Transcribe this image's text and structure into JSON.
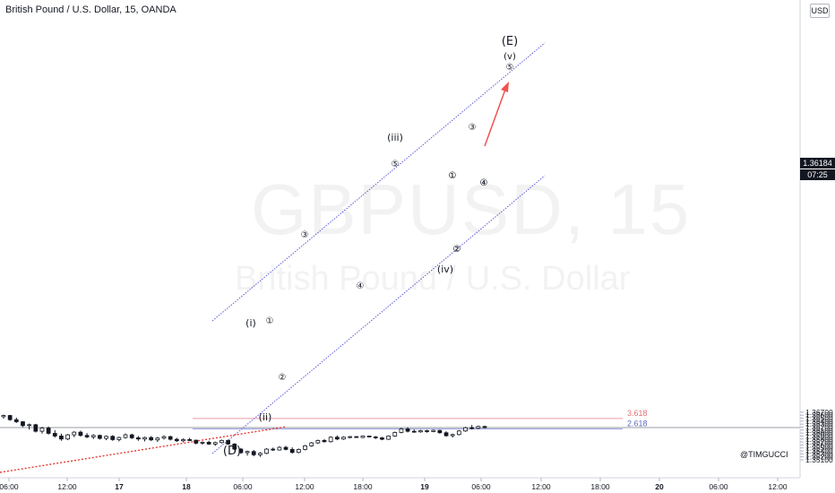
{
  "header": {
    "symbol_title": "British Pound / U.S. Dollar, 15, OANDA",
    "currency": "USD"
  },
  "watermark": {
    "symbol": "GBPUSD, 15",
    "description": "British Pound / U.S. Dollar"
  },
  "credit": "@TIMGUCCI",
  "last_price": {
    "price": "1.36184",
    "countdown": "07:25"
  },
  "colors": {
    "up": "#ffffff",
    "down": "#131722",
    "channel": "#5b5bdb",
    "fib_3618": "#f29aa2",
    "fib_2618": "#9aa0dd",
    "trendline": "#e53935",
    "arrow": "#ef5350"
  },
  "chart_data": {
    "type": "candlestick",
    "title": "British Pound / U.S. Dollar, 15, OANDA",
    "ylim": [
      1.3505,
      1.3675
    ],
    "y_ticks": [
      "1.36700",
      "1.36600",
      "1.36500",
      "1.36400",
      "1.36300",
      "1.36200",
      "1.36100",
      "1.36000",
      "1.35900",
      "1.35800",
      "1.35700",
      "1.35600",
      "1.35500",
      "1.35400",
      "1.35300",
      "1.35200",
      "1.35100"
    ],
    "x_ticks": [
      "06:00",
      "12:00",
      "17",
      "12:00",
      "18",
      "06:00",
      "12:00",
      "18:00",
      "19",
      "06:00",
      "12:00",
      "18:00",
      "20",
      "06:00",
      "12:00"
    ],
    "fib_levels": [
      {
        "label": "3.618",
        "value": 1.3649
      },
      {
        "label": "2.618",
        "value": 1.3614
      }
    ],
    "last_price": 1.36184,
    "wave_labels": [
      "(E)",
      "(v)",
      "⑤",
      "(iii)",
      "⑤",
      "③",
      "④",
      "①",
      "②",
      "(i)",
      "①",
      "②",
      "(ii)",
      "(D)",
      "③",
      "④",
      "(iv)",
      "①",
      "②",
      "④"
    ],
    "candles": [
      [
        1.3655,
        1.3662,
        1.3648,
        1.3659
      ],
      [
        1.3659,
        1.3661,
        1.3641,
        1.3645
      ],
      [
        1.3645,
        1.3652,
        1.3634,
        1.3638
      ],
      [
        1.3638,
        1.364,
        1.362,
        1.3625
      ],
      [
        1.3625,
        1.3632,
        1.3612,
        1.3628
      ],
      [
        1.3628,
        1.3631,
        1.3602,
        1.3606
      ],
      [
        1.3606,
        1.3621,
        1.3598,
        1.3617
      ],
      [
        1.3617,
        1.3622,
        1.3595,
        1.3599
      ],
      [
        1.3599,
        1.361,
        1.3585,
        1.359
      ],
      [
        1.359,
        1.3598,
        1.3574,
        1.358
      ],
      [
        1.358,
        1.3597,
        1.3576,
        1.3594
      ],
      [
        1.3594,
        1.3606,
        1.3586,
        1.3603
      ],
      [
        1.3603,
        1.3608,
        1.3588,
        1.3592
      ],
      [
        1.3592,
        1.36,
        1.3583,
        1.3587
      ],
      [
        1.3587,
        1.3596,
        1.358,
        1.3592
      ],
      [
        1.3592,
        1.3595,
        1.3578,
        1.3582
      ],
      [
        1.3582,
        1.3592,
        1.3576,
        1.3589
      ],
      [
        1.3589,
        1.3593,
        1.3574,
        1.3578
      ],
      [
        1.3578,
        1.3588,
        1.3572,
        1.3585
      ],
      [
        1.3585,
        1.3599,
        1.3581,
        1.3594
      ],
      [
        1.3594,
        1.3598,
        1.358,
        1.3584
      ],
      [
        1.3584,
        1.359,
        1.3574,
        1.358
      ],
      [
        1.358,
        1.3588,
        1.3572,
        1.3585
      ],
      [
        1.3585,
        1.359,
        1.3573,
        1.3577
      ],
      [
        1.3577,
        1.3587,
        1.357,
        1.3583
      ],
      [
        1.3583,
        1.3592,
        1.3578,
        1.3588
      ],
      [
        1.3588,
        1.3591,
        1.3575,
        1.3579
      ],
      [
        1.3579,
        1.3584,
        1.357,
        1.3574
      ],
      [
        1.3574,
        1.3582,
        1.3569,
        1.3578
      ],
      [
        1.3578,
        1.3584,
        1.3573,
        1.3576
      ],
      [
        1.3576,
        1.3578,
        1.3562,
        1.3566
      ],
      [
        1.3566,
        1.3572,
        1.3561,
        1.3569
      ],
      [
        1.3569,
        1.3574,
        1.356,
        1.3563
      ],
      [
        1.3563,
        1.3571,
        1.3557,
        1.3568
      ],
      [
        1.3568,
        1.3578,
        1.3565,
        1.3575
      ],
      [
        1.3575,
        1.3578,
        1.356,
        1.3563
      ],
      [
        1.3563,
        1.3566,
        1.3542,
        1.3546
      ],
      [
        1.3546,
        1.355,
        1.353,
        1.3534
      ],
      [
        1.3534,
        1.3541,
        1.3524,
        1.3538
      ],
      [
        1.3538,
        1.3543,
        1.3522,
        1.3527
      ],
      [
        1.3527,
        1.3536,
        1.352,
        1.3532
      ],
      [
        1.3532,
        1.3549,
        1.3529,
        1.3546
      ],
      [
        1.3546,
        1.3551,
        1.354,
        1.3543
      ],
      [
        1.3543,
        1.3556,
        1.3541,
        1.3552
      ],
      [
        1.3552,
        1.3557,
        1.3542,
        1.3545
      ],
      [
        1.3545,
        1.3552,
        1.3531,
        1.3535
      ],
      [
        1.3535,
        1.3548,
        1.3532,
        1.3545
      ],
      [
        1.3545,
        1.356,
        1.3542,
        1.3557
      ],
      [
        1.3557,
        1.357,
        1.3554,
        1.3567
      ],
      [
        1.3567,
        1.3578,
        1.3563,
        1.3575
      ],
      [
        1.3575,
        1.358,
        1.3568,
        1.3571
      ],
      [
        1.3571,
        1.3589,
        1.3568,
        1.3586
      ],
      [
        1.3586,
        1.3592,
        1.3576,
        1.358
      ],
      [
        1.358,
        1.3589,
        1.3577,
        1.3586
      ],
      [
        1.3586,
        1.359,
        1.3582,
        1.3588
      ],
      [
        1.3588,
        1.359,
        1.3584,
        1.3585
      ],
      [
        1.3585,
        1.3592,
        1.3583,
        1.359
      ],
      [
        1.359,
        1.3591,
        1.3585,
        1.3587
      ],
      [
        1.3587,
        1.359,
        1.358,
        1.3584
      ],
      [
        1.3584,
        1.3587,
        1.3576,
        1.3579
      ],
      [
        1.3579,
        1.3592,
        1.3577,
        1.359
      ],
      [
        1.359,
        1.3605,
        1.3587,
        1.3602
      ],
      [
        1.3602,
        1.3618,
        1.3599,
        1.3614
      ],
      [
        1.3614,
        1.362,
        1.3602,
        1.3606
      ],
      [
        1.3606,
        1.3612,
        1.3601,
        1.3604
      ],
      [
        1.3604,
        1.3611,
        1.3601,
        1.3608
      ],
      [
        1.3608,
        1.3611,
        1.3601,
        1.3605
      ],
      [
        1.3605,
        1.3612,
        1.3603,
        1.3609
      ],
      [
        1.3609,
        1.3611,
        1.3598,
        1.3601
      ],
      [
        1.3601,
        1.3606,
        1.3588,
        1.3591
      ],
      [
        1.3591,
        1.3598,
        1.3585,
        1.3595
      ],
      [
        1.3595,
        1.361,
        1.3592,
        1.3607
      ],
      [
        1.3607,
        1.3621,
        1.3604,
        1.3618
      ],
      [
        1.3618,
        1.3627,
        1.3612,
        1.3616
      ],
      [
        1.3616,
        1.3625,
        1.3613,
        1.3622
      ],
      [
        1.3622,
        1.3625,
        1.3616,
        1.3618
      ]
    ]
  }
}
